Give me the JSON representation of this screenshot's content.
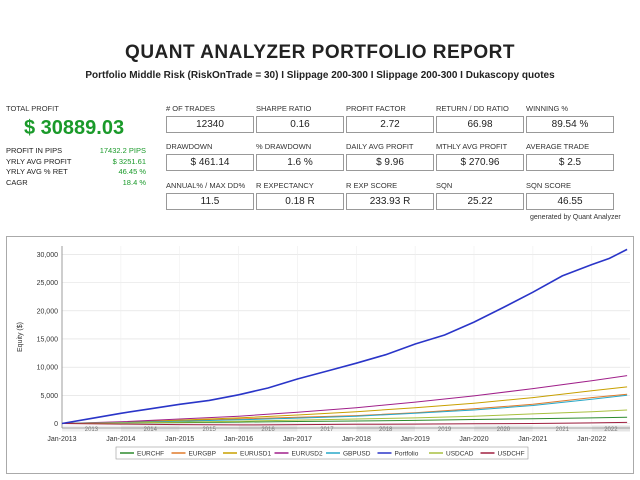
{
  "header": {
    "title": "QUANT ANALYZER PORTFOLIO REPORT",
    "subtitle": "Portfolio Middle Risk (RiskOnTrade = 30) I Slippage 200-300 I Slippage 200-300 I Dukascopy quotes"
  },
  "summary": {
    "total_profit_label": "TOTAL PROFIT",
    "total_profit_value": "$ 30889.03",
    "rows": [
      {
        "label": "PROFIT IN PIPS",
        "value": "17432.2 PIPS"
      },
      {
        "label": "YRLY AVG PROFIT",
        "value": "$ 3251.61"
      },
      {
        "label": "YRLY AVG % RET",
        "value": "46.45 %"
      },
      {
        "label": "CAGR",
        "value": "18.4 %"
      }
    ]
  },
  "stats": [
    {
      "label": "# OF TRADES",
      "value": "12340"
    },
    {
      "label": "SHARPE RATIO",
      "value": "0.16"
    },
    {
      "label": "PROFIT FACTOR",
      "value": "2.72"
    },
    {
      "label": "RETURN / DD RATIO",
      "value": "66.98"
    },
    {
      "label": "WINNING %",
      "value": "89.54 %"
    },
    {
      "label": "DRAWDOWN",
      "value": "$ 461.14"
    },
    {
      "label": "% DRAWDOWN",
      "value": "1.6 %"
    },
    {
      "label": "DAILY AVG PROFIT",
      "value": "$ 9.96"
    },
    {
      "label": "MTHLY AVG PROFIT",
      "value": "$ 270.96"
    },
    {
      "label": "AVERAGE TRADE",
      "value": "$ 2.5"
    },
    {
      "label": "ANNUAL% / MAX DD%",
      "value": "11.5"
    },
    {
      "label": "R EXPECTANCY",
      "value": "0.18 R"
    },
    {
      "label": "R EXP SCORE",
      "value": "233.93 R"
    },
    {
      "label": "SQN",
      "value": "25.22"
    },
    {
      "label": "SQN SCORE",
      "value": "46.55"
    }
  ],
  "generated_by": "generated by Quant Analyzer",
  "chart_data": {
    "type": "line",
    "ylabel": "Equity ($)",
    "ylim": [
      -800,
      31500
    ],
    "yticks": [
      0,
      5000,
      10000,
      15000,
      20000,
      25000,
      30000
    ],
    "ytick_labels": [
      "0",
      "5,000",
      "10,000",
      "15,000",
      "20,000",
      "25,000",
      "30,000"
    ],
    "xlim": [
      2013.0,
      2022.65
    ],
    "xticks": [
      2013.0,
      2014.0,
      2015.0,
      2016.0,
      2017.0,
      2018.0,
      2019.0,
      2020.0,
      2021.0,
      2022.0
    ],
    "xtick_labels": [
      "Jan-2013",
      "Jan-2014",
      "Jan-2015",
      "Jan-2016",
      "Jan-2017",
      "Jan-2018",
      "Jan-2019",
      "Jan-2020",
      "Jan-2021",
      "Jan-2022"
    ],
    "year_stripe_labels": [
      "2013",
      "2014",
      "2015",
      "2016",
      "2017",
      "2018",
      "2019",
      "2020",
      "2021",
      "2022"
    ],
    "grid": true,
    "legend_position": "bottom",
    "colors": {
      "EURCHF": "#2e8b2e",
      "EURGBP": "#e07a2a",
      "EURUSD1": "#c8a000",
      "EURUSD2": "#a0208a",
      "GBPUSD": "#28a8c8",
      "Portfolio": "#2a35c8",
      "USDCAD": "#a8c040",
      "USDCHF": "#a02040"
    },
    "series": [
      {
        "name": "EURCHF",
        "x": [
          2013.0,
          2014.0,
          2015.0,
          2016.0,
          2017.0,
          2018.0,
          2019.0,
          2020.0,
          2021.0,
          2022.0,
          2022.6
        ],
        "y": [
          0,
          100,
          150,
          250,
          350,
          450,
          550,
          700,
          850,
          1000,
          1100
        ]
      },
      {
        "name": "EURGBP",
        "x": [
          2013.0,
          2014.0,
          2015.0,
          2016.0,
          2017.0,
          2018.0,
          2019.0,
          2020.0,
          2021.0,
          2022.0,
          2022.6
        ],
        "y": [
          0,
          200,
          500,
          800,
          1100,
          1400,
          1900,
          2600,
          3400,
          4600,
          5200
        ]
      },
      {
        "name": "EURUSD1",
        "x": [
          2013.0,
          2014.0,
          2015.0,
          2016.0,
          2017.0,
          2018.0,
          2019.0,
          2020.0,
          2021.0,
          2022.0,
          2022.6
        ],
        "y": [
          0,
          250,
          600,
          1000,
          1500,
          2100,
          2800,
          3600,
          4600,
          5800,
          6500
        ]
      },
      {
        "name": "EURUSD2",
        "x": [
          2013.0,
          2014.0,
          2015.0,
          2016.0,
          2017.0,
          2018.0,
          2019.0,
          2020.0,
          2021.0,
          2022.0,
          2022.6
        ],
        "y": [
          0,
          300,
          800,
          1300,
          2000,
          2800,
          3800,
          4900,
          6200,
          7600,
          8500
        ]
      },
      {
        "name": "GBPUSD",
        "x": [
          2013.0,
          2014.0,
          2015.0,
          2016.0,
          2017.0,
          2018.0,
          2019.0,
          2020.0,
          2021.0,
          2022.0,
          2022.6
        ],
        "y": [
          0,
          150,
          400,
          650,
          950,
          1300,
          1800,
          2400,
          3200,
          4300,
          5000
        ]
      },
      {
        "name": "Portfolio",
        "x": [
          2013.0,
          2013.5,
          2014.0,
          2014.5,
          2015.0,
          2015.5,
          2016.0,
          2016.5,
          2017.0,
          2017.5,
          2018.0,
          2018.5,
          2019.0,
          2019.5,
          2020.0,
          2020.5,
          2021.0,
          2021.5,
          2022.0,
          2022.3,
          2022.6
        ],
        "y": [
          0,
          900,
          1800,
          2600,
          3400,
          4100,
          5100,
          6300,
          7900,
          9300,
          10700,
          12200,
          14100,
          15700,
          18000,
          20600,
          23300,
          26200,
          28200,
          29300,
          30900
        ]
      },
      {
        "name": "USDCAD",
        "x": [
          2013.0,
          2014.0,
          2015.0,
          2016.0,
          2017.0,
          2018.0,
          2019.0,
          2020.0,
          2021.0,
          2022.0,
          2022.6
        ],
        "y": [
          0,
          100,
          250,
          400,
          600,
          800,
          1000,
          1300,
          1700,
          2100,
          2400
        ]
      },
      {
        "name": "USDCHF",
        "x": [
          2013.0,
          2014.0,
          2015.0,
          2016.0,
          2017.0,
          2018.0,
          2019.0,
          2020.0,
          2021.0,
          2022.0,
          2022.6
        ],
        "y": [
          0,
          -100,
          -200,
          -250,
          -200,
          -150,
          -100,
          -50,
          0,
          100,
          200
        ]
      }
    ]
  }
}
